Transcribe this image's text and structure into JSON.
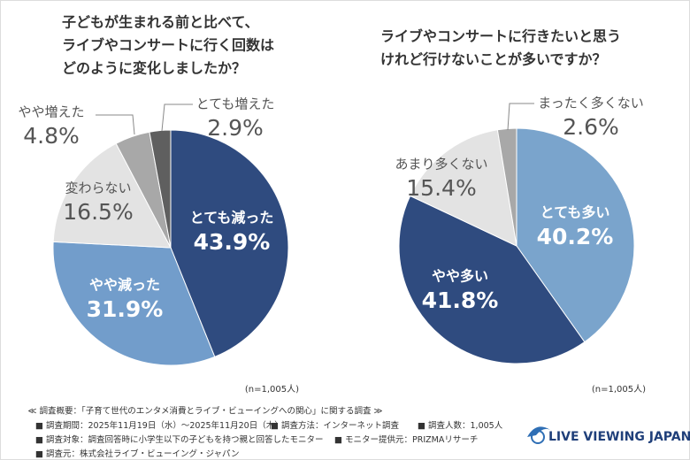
{
  "chart_data": [
    {
      "type": "pie",
      "title": [
        "子どもが生まれる前と比べて、",
        "ライブやコンサートに行く回数は",
        "どのように変化しましたか？"
      ],
      "categories": [
        "とても減った",
        "やや減った",
        "変わらない",
        "やや増えた",
        "とても増えた"
      ],
      "values": [
        43.9,
        31.9,
        16.5,
        4.8,
        2.9
      ],
      "value_labels": [
        "43.9%",
        "31.9%",
        "16.5%",
        "4.8%",
        "2.9%"
      ],
      "colors": [
        "#2f4b7f",
        "#729dcb",
        "#e3e3e3",
        "#a8a8a8",
        "#5f5f5f"
      ],
      "note": "(n=1,005人)"
    },
    {
      "type": "pie",
      "title": [
        "ライブやコンサートに行きたいと思う",
        "けれど行けないことが多いですか？"
      ],
      "categories": [
        "とても多い",
        "やや多い",
        "あまり多くない",
        "まったく多くない"
      ],
      "values": [
        40.2,
        41.8,
        15.4,
        2.6
      ],
      "value_labels": [
        "40.2%",
        "41.8%",
        "15.4%",
        "2.6%"
      ],
      "colors": [
        "#7aa4cc",
        "#2f4b7f",
        "#e3e3e3",
        "#a8a8a8"
      ],
      "note": "(n=1,005人)"
    }
  ],
  "footer": {
    "heading": "≪ 調査概要：「子育て世代のエンタメ消費とライブ・ビューイングへの関心」に関する調査 ≫",
    "items": [
      "調査期間：2025年11月19日（水）～2025年11月20日（木）",
      "調査方法：インターネット調査",
      "調査人数：1,005人",
      "調査対象：調査回答時に小学生以下の子どもを持つ親と回答したモニター",
      "モニター提供元：PRIZMAリサーチ",
      "調査元：株式会社ライブ・ビューイング・ジャパン"
    ],
    "logo": "LIVE VIEWING JAPAN"
  }
}
